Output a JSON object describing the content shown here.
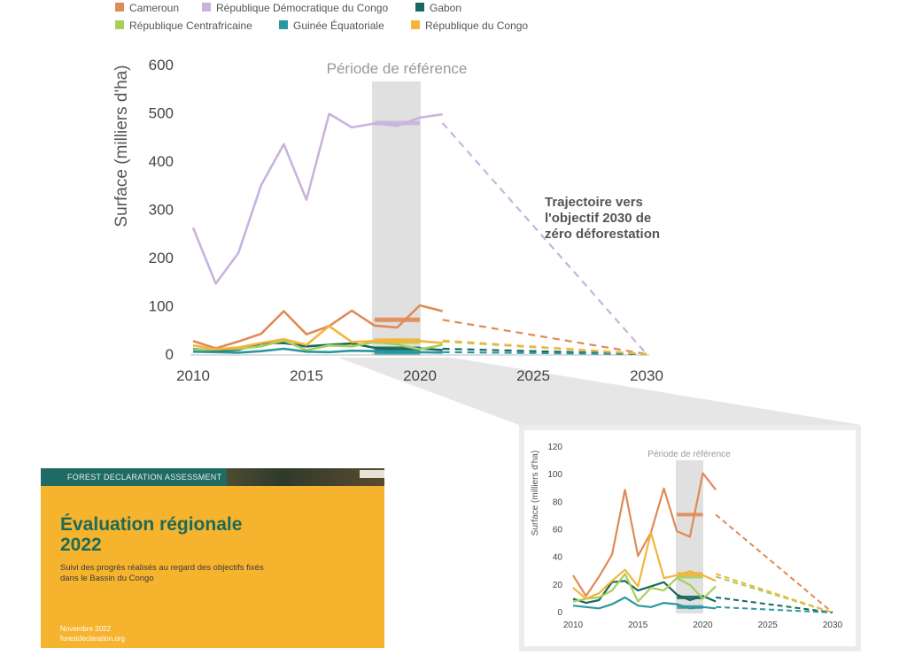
{
  "legend": [
    {
      "name": "Cameroun",
      "color": "#e08a55"
    },
    {
      "name": "République Démocratique du Congo",
      "color": "#c9b3dc"
    },
    {
      "name": "Gabon",
      "color": "#176860"
    },
    {
      "name": "République Centrafricaine",
      "color": "#a7cf5a"
    },
    {
      "name": "Guinée Équatoriale",
      "color": "#2a97a0"
    },
    {
      "name": "République du Congo",
      "color": "#f4b43c"
    }
  ],
  "annotation": {
    "line1": "Trajectoire vers",
    "line2": "l'objectif 2030 de",
    "line3": "zéro déforestation"
  },
  "chart_data": [
    {
      "type": "line",
      "ylabel": "Surface (milliers d'ha)",
      "period_label": "Période de référence",
      "ylim": [
        0,
        600
      ],
      "yticks": [
        0,
        100,
        200,
        300,
        400,
        500,
        600
      ],
      "xlim": [
        2010,
        2030
      ],
      "xticks": [
        2010,
        2015,
        2020,
        2025,
        2030
      ],
      "reference_period": [
        2018,
        2020
      ],
      "series": [
        {
          "name": "Cameroun",
          "color": "#e08a55",
          "x": [
            2010,
            2011,
            2012,
            2013,
            2014,
            2015,
            2016,
            2017,
            2018,
            2019,
            2020,
            2021
          ],
          "values": [
            27,
            12,
            26,
            42,
            89,
            41,
            58,
            90,
            59,
            55,
            101,
            89
          ],
          "reference": 71,
          "target": 0
        },
        {
          "name": "République Démocratique du Congo",
          "color": "#c9b3dc",
          "x": [
            2010,
            2011,
            2012,
            2013,
            2014,
            2015,
            2016,
            2017,
            2018,
            2019,
            2020,
            2021
          ],
          "values": [
            262,
            146,
            210,
            350,
            435,
            320,
            498,
            470,
            478,
            473,
            490,
            497
          ],
          "reference": 479,
          "target": 0
        },
        {
          "name": "Gabon",
          "color": "#176860",
          "x": [
            2010,
            2011,
            2012,
            2013,
            2014,
            2015,
            2016,
            2017,
            2018,
            2019,
            2020,
            2021
          ],
          "values": [
            10,
            7,
            9,
            22,
            23,
            16,
            19,
            22,
            13,
            9,
            12,
            8
          ],
          "reference": 11,
          "target": 0
        },
        {
          "name": "République Centrafricaine",
          "color": "#a7cf5a",
          "x": [
            2010,
            2011,
            2012,
            2013,
            2014,
            2015,
            2016,
            2017,
            2018,
            2019,
            2020,
            2021
          ],
          "values": [
            8,
            10,
            11,
            16,
            28,
            8,
            18,
            16,
            25,
            20,
            10,
            19
          ],
          "reference": 26,
          "target": 0
        },
        {
          "name": "Guinée Équatoriale",
          "color": "#2a97a0",
          "x": [
            2010,
            2011,
            2012,
            2013,
            2014,
            2015,
            2016,
            2017,
            2018,
            2019,
            2020,
            2021
          ],
          "values": [
            5,
            4,
            3,
            6,
            11,
            5,
            4,
            7,
            6,
            3,
            4,
            3
          ],
          "reference": 4,
          "target": 0
        },
        {
          "name": "République du Congo",
          "color": "#f4b43c",
          "x": [
            2010,
            2011,
            2012,
            2013,
            2014,
            2015,
            2016,
            2017,
            2018,
            2019,
            2020,
            2021
          ],
          "values": [
            18,
            10,
            14,
            23,
            31,
            19,
            58,
            25,
            27,
            30,
            27,
            23
          ],
          "reference": 28,
          "target": 0
        }
      ]
    },
    {
      "type": "line",
      "ylabel": "Surface (milliers d'ha)",
      "period_label": "Période de référence",
      "ylim": [
        0,
        120
      ],
      "yticks": [
        0,
        20,
        40,
        60,
        80,
        100,
        120
      ],
      "xlim": [
        2010,
        2030
      ],
      "xticks": [
        2010,
        2015,
        2020,
        2025,
        2030
      ],
      "reference_period": [
        2018,
        2020
      ],
      "series_note": "zoom of the same series, excluding République Démocratique du Congo"
    }
  ],
  "cover": {
    "band_label": "FOREST DECLARATION ASSESSMENT",
    "title_line1": "Évaluation régionale",
    "title_line2": "2022",
    "subtitle_line1": "Suivi des progrès réalisés au regard des objectifs fixés",
    "subtitle_line2": "dans le Bassin du Congo",
    "date": "Novembre 2022",
    "url": "forestdeclaration.org"
  }
}
